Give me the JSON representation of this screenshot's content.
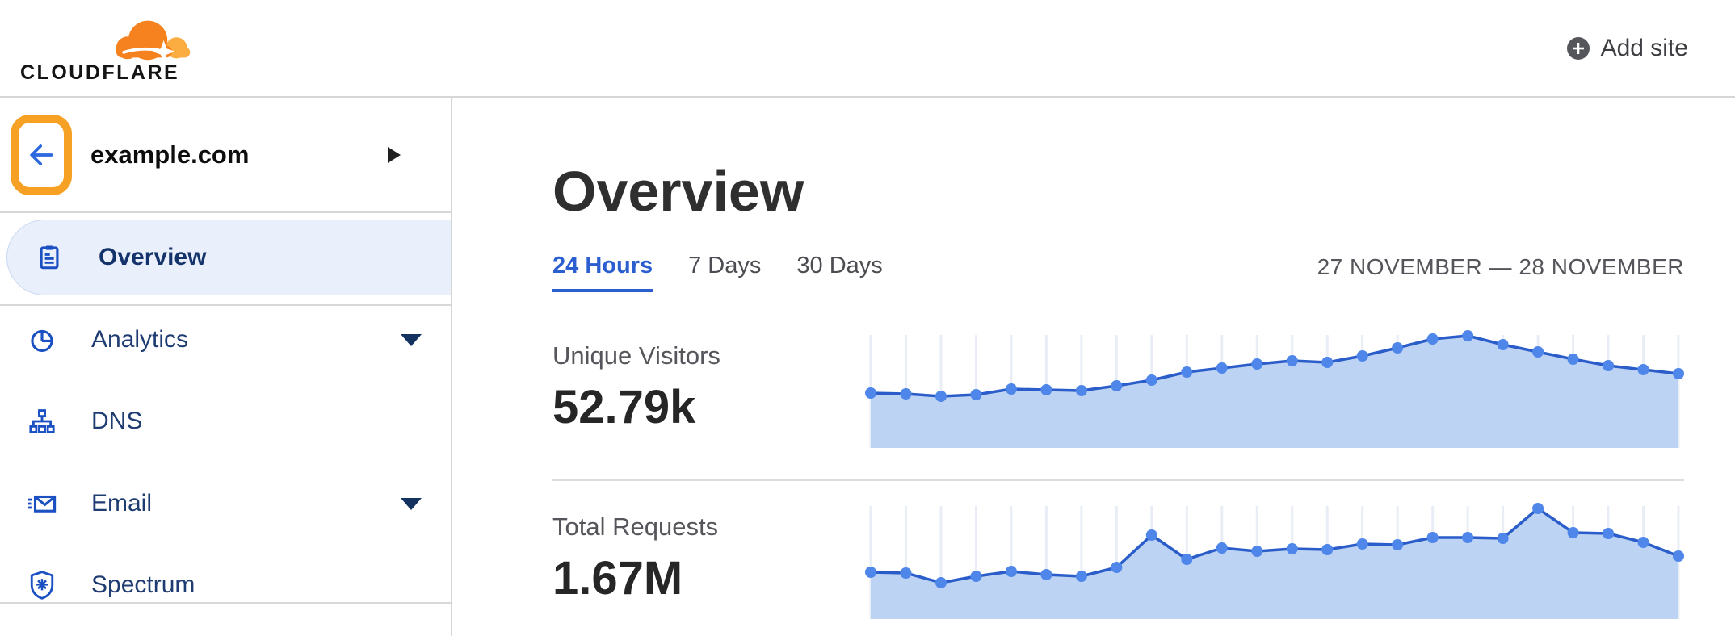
{
  "header": {
    "logo_text": "CLOUDFLARE",
    "add_site_label": "Add site"
  },
  "sidebar": {
    "site_name": "example.com",
    "back_icon": "arrow-left-icon",
    "expand_icon": "caret-right-icon",
    "items": [
      {
        "label": "Overview",
        "icon": "clipboard-icon",
        "selected": true,
        "has_caret": false
      },
      {
        "label": "Analytics",
        "icon": "pie-chart-icon",
        "selected": false,
        "has_caret": true
      },
      {
        "label": "DNS",
        "icon": "network-icon",
        "selected": false,
        "has_caret": false
      },
      {
        "label": "Email",
        "icon": "envelope-icon",
        "selected": false,
        "has_caret": true
      },
      {
        "label": "Spectrum",
        "icon": "shield-icon",
        "selected": false,
        "has_caret": false
      }
    ]
  },
  "main": {
    "title": "Overview",
    "tabs": [
      {
        "label": "24 Hours",
        "active": true
      },
      {
        "label": "7 Days",
        "active": false
      },
      {
        "label": "30 Days",
        "active": false
      }
    ],
    "date_range": "27 NOVEMBER — 28 NOVEMBER",
    "stats": [
      {
        "label": "Unique Visitors",
        "value": "52.79k"
      },
      {
        "label": "Total Requests",
        "value": "1.67M"
      }
    ]
  },
  "colors": {
    "logo_orange": "#F6821F",
    "logo_orange_light": "#FBAD41",
    "annotation_orange": "#F6A124",
    "link_blue": "#2B5FD0",
    "icon_blue": "#1B50C3",
    "navy_text": "#1E3C72",
    "selected_bg": "#E9EFFB",
    "chart_line": "#2A5DC9",
    "chart_dot": "#4E86EA",
    "chart_fill": "#BDD3F3",
    "chart_grid": "#E9EDF6"
  },
  "chart_data": [
    {
      "type": "area",
      "title": "Unique Visitors",
      "total_label": "52.79k",
      "x_description": "24 hourly points, 27 November — 28 November, unlabeled axis",
      "ylim": [
        0,
        140
      ],
      "units": "relative height (chart-pixel scale, no axis labels shown)",
      "grid": "vertical line per point",
      "legend": "none",
      "values": [
        68,
        67,
        64,
        66,
        73,
        72,
        71,
        77,
        84,
        94,
        99,
        104,
        108,
        106,
        114,
        124,
        135,
        139,
        128,
        119,
        110,
        102,
        97,
        92
      ]
    },
    {
      "type": "area",
      "title": "Total Requests",
      "total_label": "1.67M",
      "x_description": "24 hourly points, 27 November — 28 November, unlabeled axis",
      "ylim": [
        0,
        140
      ],
      "units": "relative height (chart-pixel scale, no axis labels shown)",
      "grid": "vertical line per point",
      "legend": "none",
      "values": [
        58,
        57,
        45,
        53,
        59,
        55,
        53,
        64,
        104,
        74,
        88,
        84,
        87,
        86,
        93,
        92,
        101,
        101,
        100,
        137,
        107,
        106,
        95,
        78
      ]
    }
  ]
}
